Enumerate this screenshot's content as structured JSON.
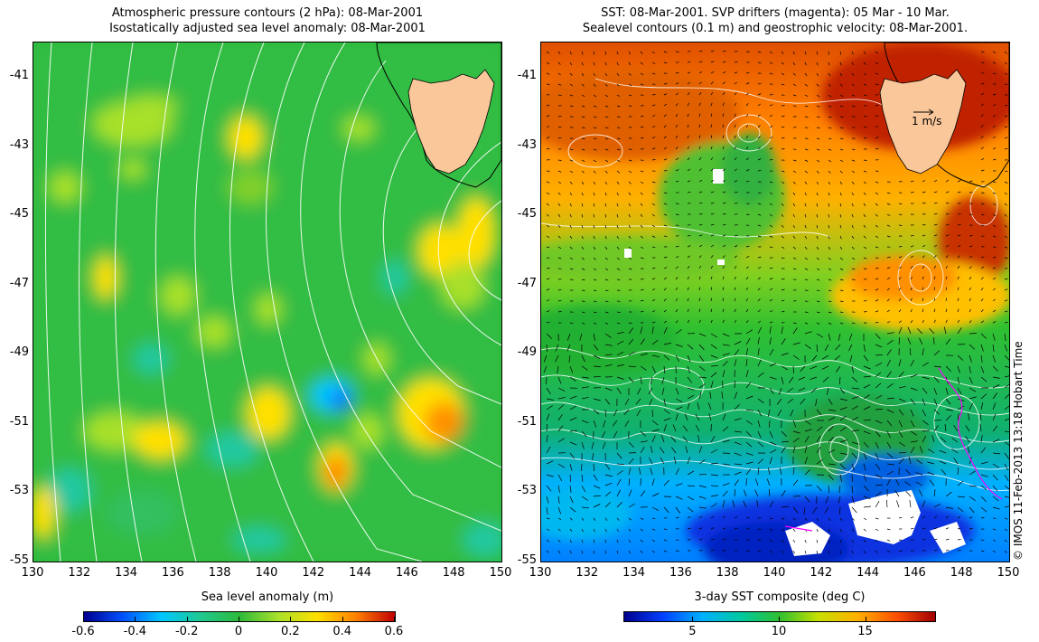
{
  "left": {
    "title_line1": "Atmospheric pressure contours (2 hPa): 08-Mar-2001",
    "title_line2": "Isostatically adjusted sea level anomaly: 08-Mar-2001",
    "colorbar_label": "Sea level anomaly (m)",
    "colorbar_ticks": [
      "-0.6",
      "-0.4",
      "-0.2",
      "0",
      "0.2",
      "0.4",
      "0.6"
    ],
    "colorbar_range": [
      -0.6,
      0.6
    ]
  },
  "right": {
    "title_line1": "SST: 08-Mar-2001. SVP drifters (magenta): 05 Mar - 10 Mar.",
    "title_line2": "Sealevel contours (0.1 m) and geostrophic velocity: 08-Mar-2001.",
    "scale_arrow_label": "1 m/s",
    "colorbar_label": "3-day SST composite (deg C)",
    "colorbar_ticks": [
      "5",
      "10",
      "15"
    ],
    "colorbar_range": [
      1,
      19
    ]
  },
  "axes": {
    "lat_labels": [
      "-41",
      "-43",
      "-45",
      "-47",
      "-49",
      "-51",
      "-53",
      "-55"
    ],
    "lon_labels": [
      "130",
      "132",
      "134",
      "136",
      "138",
      "140",
      "142",
      "144",
      "146",
      "148",
      "150"
    ],
    "lat_range": [
      -55,
      -40
    ],
    "lon_range": [
      130,
      150
    ]
  },
  "credit": "© IMOS 11-Feb-2013 13:18 Hobart Time",
  "colors": {
    "land": "#f9c79a",
    "sla_colormap": [
      "#00008f",
      "#0050ff",
      "#00c8ff",
      "#20c890",
      "#2dba3c",
      "#a8e02a",
      "#ffe000",
      "#ff8000",
      "#c00000"
    ],
    "sst_colormap": [
      "#00008f",
      "#0040ff",
      "#00b0ff",
      "#00c8a0",
      "#30c030",
      "#c8e000",
      "#ffb000",
      "#ff5000",
      "#a00000"
    ]
  }
}
